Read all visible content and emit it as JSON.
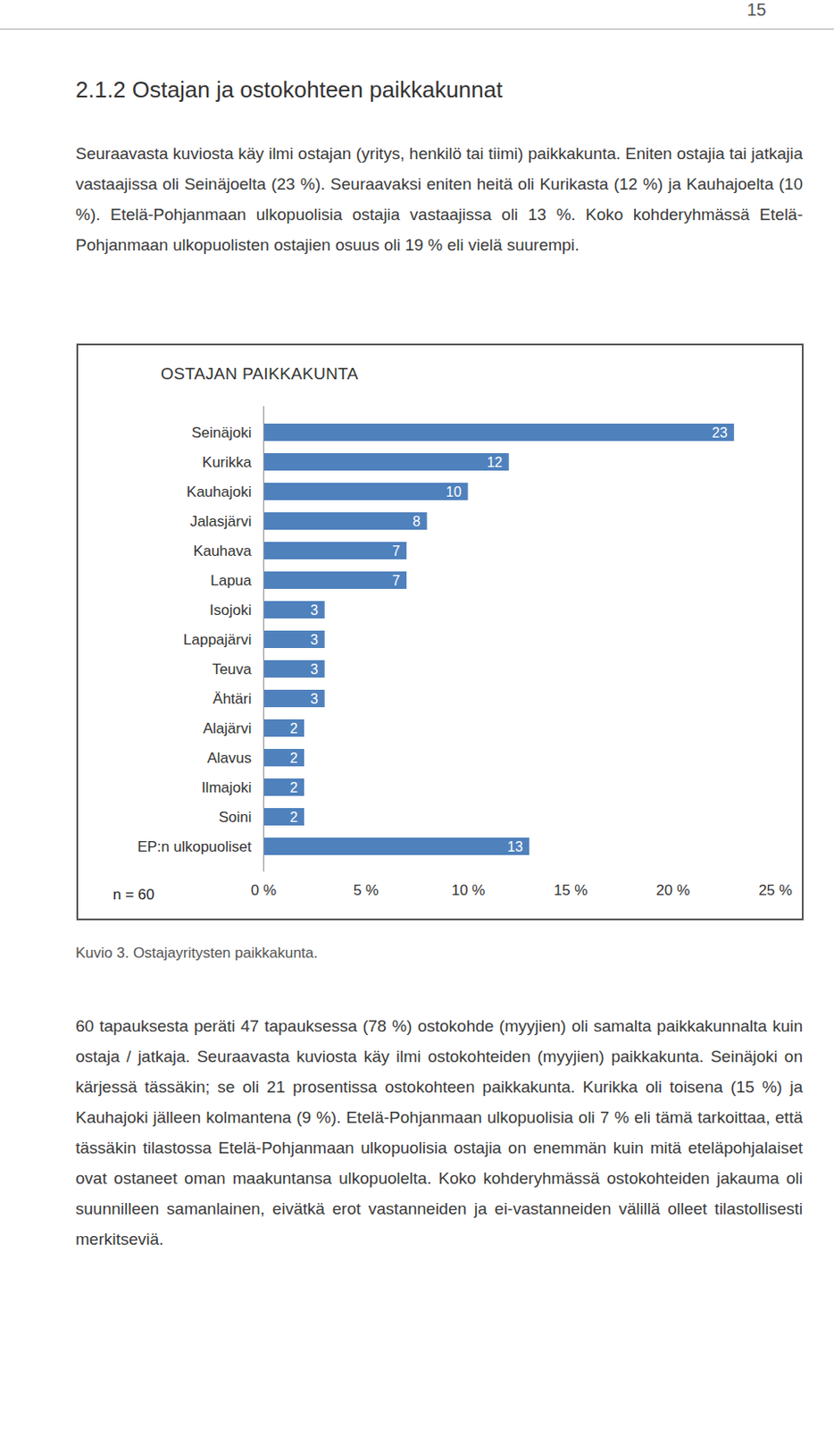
{
  "page_number": 15,
  "heading": "2.1.2 Ostajan ja ostokohteen paikkakunnat",
  "paragraphs_before": [
    "Seuraavasta kuviosta käy ilmi ostajan (yritys, henkilö tai tiimi) paikkakunta. Eniten ostajia tai jatkajia vastaajissa oli Seinäjoelta (23 %). Seuraavaksi eniten heitä oli Kurikasta (12 %) ja Kauhajoelta (10 %). Etelä-Pohjanmaan ulkopuolisia ostajia vastaajissa oli 13 %. Koko kohderyhmässä Etelä-Pohjanmaan ulkopuolisten ostajien osuus oli 19 % eli vielä suurempi."
  ],
  "chart_data": {
    "type": "bar",
    "orientation": "horizontal",
    "title": "OSTAJAN PAIKKAKUNTA",
    "categories": [
      "Seinäjoki",
      "Kurikka",
      "Kauhajoki",
      "Jalasjärvi",
      "Kauhava",
      "Lapua",
      "Isojoki",
      "Lappajärvi",
      "Teuva",
      "Ähtäri",
      "Alajärvi",
      "Alavus",
      "Ilmajoki",
      "Soini",
      "EP:n ulkopuoliset"
    ],
    "values": [
      23,
      12,
      10,
      8,
      7,
      7,
      3,
      3,
      3,
      3,
      2,
      2,
      2,
      2,
      13
    ],
    "color": "#4f81bd",
    "xlim": [
      0,
      25
    ],
    "xticks": [
      {
        "value": 0,
        "label": "0 %"
      },
      {
        "value": 5,
        "label": "5 %"
      },
      {
        "value": 10,
        "label": "10 %"
      },
      {
        "value": 15,
        "label": "15 %"
      },
      {
        "value": 20,
        "label": "20 %"
      },
      {
        "value": 25,
        "label": "25 %"
      }
    ],
    "grid": false,
    "data_labels": true,
    "annotation": "n = 60"
  },
  "caption": "Kuvio 3. Ostajayritysten paikkakunta.",
  "paragraphs_after": [
    "60 tapauksesta peräti 47 tapauksessa (78 %) ostokohde (myyjien) oli samalta paikkakunnalta kuin ostaja / jatkaja. Seuraavasta kuviosta käy ilmi ostokohteiden (myyjien) paikkakunta. Seinäjoki on kärjessä tässäkin; se oli 21 prosentissa ostokohteen paikkakunta. Kurikka oli toisena (15 %) ja Kauhajoki jälleen kolmantena (9 %). Etelä-Pohjanmaan ulkopuolisia oli 7 % eli tämä tarkoittaa, että tässäkin tilastossa Etelä-Pohjanmaan ulkopuolisia ostajia on enemmän kuin mitä eteläpohjalaiset ovat ostaneet oman maakuntansa ulkopuolelta. Koko kohderyhmässä ostokohteiden jakauma oli suunnilleen samanlainen, eivätkä erot vastanneiden ja ei-vastanneiden välillä olleet tilastollisesti merkitseviä."
  ]
}
